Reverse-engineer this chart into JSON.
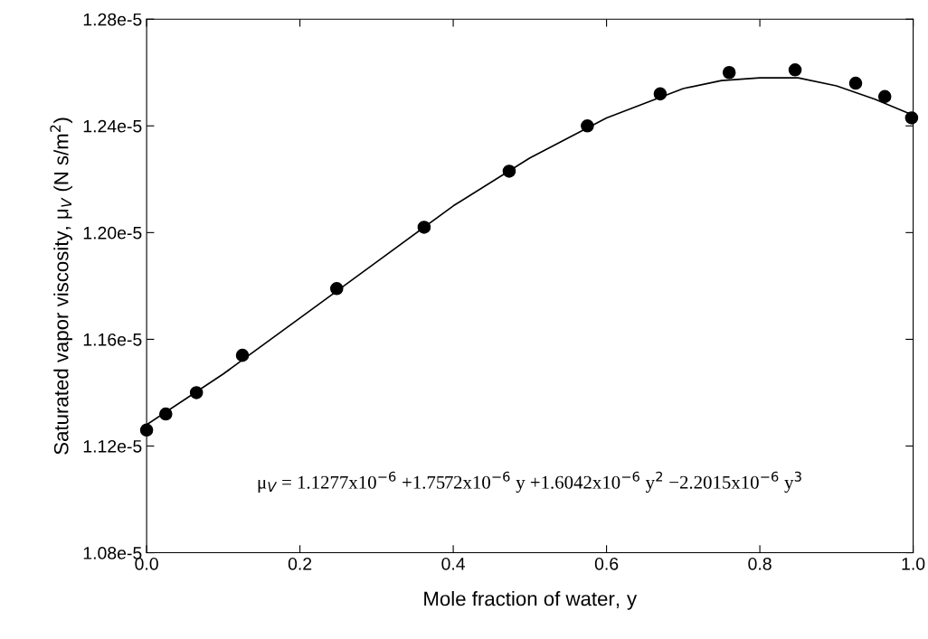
{
  "chart_data": {
    "type": "scatter",
    "xlabel": "Mole fraction of water, $_{}$y",
    "ylabel": "Saturated vapor viscosity, μ$_{V}$ (N s/m$^{2}$)",
    "xlim": [
      0,
      1.0
    ],
    "xticks": [
      {
        "value": 0,
        "label": "0.0"
      },
      0.2,
      0.4,
      0.6,
      0.8,
      {
        "value": 1.0,
        "label": "1.0"
      }
    ],
    "ylim": [
      1.08e-05,
      1.28e-05
    ],
    "yticks": [
      {
        "value": 1.08e-05,
        "label": "1.08e-5"
      },
      {
        "value": 1.12e-05,
        "label": "1.12e-5"
      },
      {
        "value": 1.16e-05,
        "label": "1.16e-5"
      },
      {
        "value": 1.2e-05,
        "label": "1.20e-5"
      },
      {
        "value": 1.24e-05,
        "label": "1.24e-5"
      },
      {
        "value": 1.28e-05,
        "label": "1.28e-5"
      }
    ],
    "series": [
      {
        "marker": "circle",
        "color": "#000000",
        "x": [
          0.0,
          0.025,
          0.065,
          0.125,
          0.248,
          0.362,
          0.473,
          0.575,
          0.67,
          0.76,
          0.846,
          0.925,
          0.963,
          0.998
        ],
        "values": [
          1.126e-05,
          1.132e-05,
          1.14e-05,
          1.154e-05,
          1.179e-05,
          1.202e-05,
          1.223e-05,
          1.24e-05,
          1.252e-05,
          1.26e-05,
          1.261e-05,
          1.256e-05,
          1.251e-05,
          1.243e-05
        ]
      },
      {
        "type": "line",
        "marker": "none",
        "color": "#000000",
        "line_style": "solid",
        "x": [
          0.0,
          0.1,
          0.2,
          0.3,
          0.4,
          0.5,
          0.6,
          0.7,
          0.75,
          0.8,
          0.85,
          0.9,
          0.95,
          1.0
        ],
        "values": [
          1.128e-05,
          1.147e-05,
          1.168e-05,
          1.189e-05,
          1.21e-05,
          1.228e-05,
          1.243e-05,
          1.254e-05,
          1.257e-05,
          1.258e-05,
          1.258e-05,
          1.255e-05,
          1.25e-05,
          1.244e-05
        ]
      }
    ],
    "annotations": [
      "μ$_{V}$ = 1.1277x10$^{−6}$ +1.7572x10$^{−6}$ y +1.6042x10$^{−6}$ y$^{2}$ −2.2015x10$^{−6}$ y$^{3}$"
    ]
  }
}
